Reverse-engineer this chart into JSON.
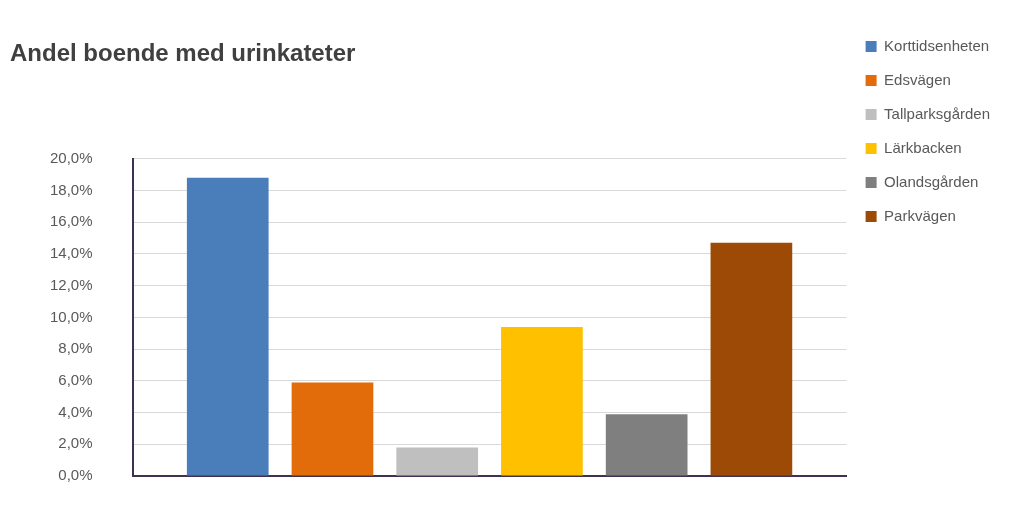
{
  "chart_data": {
    "type": "bar",
    "title": "Andel boende med urinkateter",
    "categories": [
      null
    ],
    "series": [
      {
        "name": "Korttidsenheten",
        "color": "#4a7ebb",
        "values": [
          18.8
        ]
      },
      {
        "name": "Edsvägen",
        "color": "#e36c0a",
        "values": [
          5.9
        ]
      },
      {
        "name": "Tallparksgården",
        "color": "#bfbfbf",
        "values": [
          1.8
        ]
      },
      {
        "name": "Lärkbacken",
        "color": "#ffc000",
        "values": [
          9.4
        ]
      },
      {
        "name": "Olandsgården",
        "color": "#7f7f7f",
        "values": [
          3.9
        ]
      },
      {
        "name": "Parkvägen",
        "color": "#9c4a06",
        "values": [
          14.7
        ]
      }
    ],
    "ylim": [
      0,
      20
    ],
    "yticks": [
      {
        "value": 0,
        "label": "0,0%"
      },
      {
        "value": 2,
        "label": "2,0%"
      },
      {
        "value": 4,
        "label": "4,0%"
      },
      {
        "value": 6,
        "label": "6,0%"
      },
      {
        "value": 8,
        "label": "8,0%"
      },
      {
        "value": 10,
        "label": "10,0%"
      },
      {
        "value": 12,
        "label": "12,0%"
      },
      {
        "value": 14,
        "label": "14,0%"
      },
      {
        "value": 16,
        "label": "16,0%"
      },
      {
        "value": 18,
        "label": "18,0%"
      },
      {
        "value": 20,
        "label": "20,0%"
      }
    ],
    "grid": "y",
    "legend": "top right"
  }
}
